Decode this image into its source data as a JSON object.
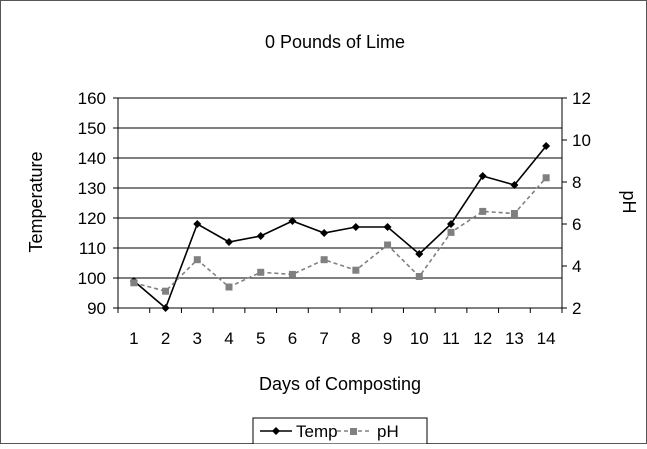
{
  "chart_data": {
    "type": "line",
    "title": "0 Pounds of Lime",
    "xlabel": "Days of Composting",
    "ylabel": "Temperature",
    "y2label": "pH",
    "categories": [
      "1",
      "2",
      "3",
      "4",
      "5",
      "6",
      "7",
      "8",
      "9",
      "10",
      "11",
      "12",
      "13",
      "14"
    ],
    "ylim": [
      90,
      160
    ],
    "yticks": [
      "90",
      "100",
      "110",
      "120",
      "130",
      "140",
      "150",
      "160"
    ],
    "y2lim": [
      2,
      12
    ],
    "y2ticks": [
      "2",
      "4",
      "6",
      "8",
      "10",
      "12"
    ],
    "grid": true,
    "legend_position": "bottom",
    "series": [
      {
        "name": "Temp",
        "axis": "left",
        "color": "#000000",
        "marker": "diamond",
        "line": "solid",
        "values": [
          99,
          90,
          118,
          112,
          114,
          119,
          115,
          117,
          117,
          108,
          118,
          134,
          131,
          144
        ]
      },
      {
        "name": "pH",
        "axis": "right",
        "color": "#808080",
        "marker": "square",
        "line": "dashed",
        "values": [
          3.2,
          2.8,
          4.3,
          3.0,
          3.7,
          3.6,
          4.3,
          3.8,
          5.0,
          3.5,
          5.6,
          6.6,
          6.5,
          8.2
        ]
      }
    ]
  }
}
